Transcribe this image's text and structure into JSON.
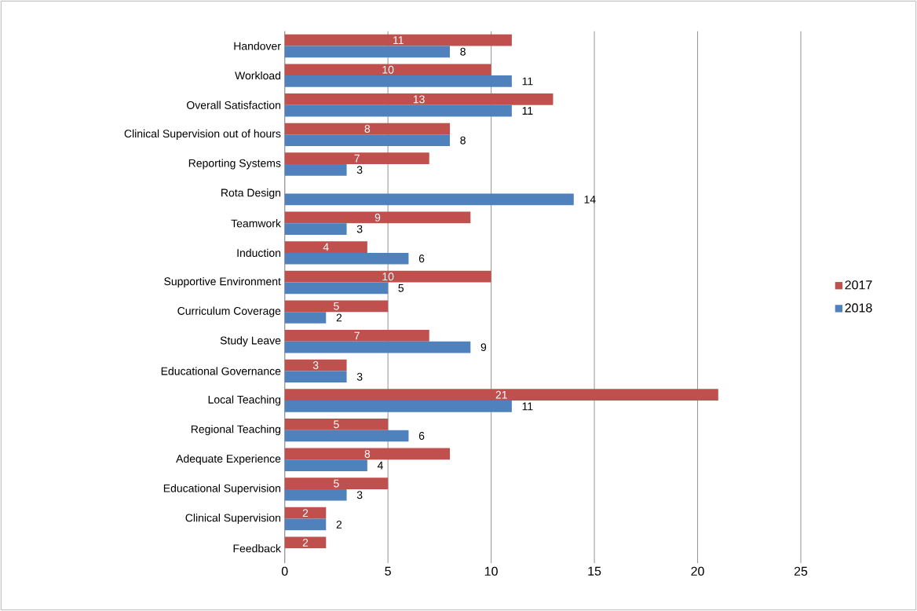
{
  "chart_data": {
    "type": "bar",
    "orientation": "horizontal",
    "categories": [
      "Handover",
      "Workload",
      "Overall Satisfaction",
      "Clinical Supervision out of hours",
      "Reporting Systems",
      "Rota Design",
      "Teamwork",
      "Induction",
      "Supportive Environment",
      "Curriculum Coverage",
      "Study Leave",
      "Educational Governance",
      "Local Teaching",
      "Regional Teaching",
      "Adequate Experience",
      "Educational Supervision",
      "Clinical Supervision",
      "Feedback"
    ],
    "series": [
      {
        "name": "2017",
        "color": "#c0504d",
        "values": [
          11,
          10,
          13,
          8,
          7,
          null,
          9,
          4,
          10,
          5,
          7,
          3,
          21,
          5,
          8,
          5,
          2,
          2
        ]
      },
      {
        "name": "2018",
        "color": "#4f81bd",
        "values": [
          8,
          11,
          11,
          8,
          3,
          14,
          3,
          6,
          5,
          2,
          9,
          3,
          11,
          6,
          4,
          3,
          2,
          null
        ]
      }
    ],
    "xlim": [
      0,
      25
    ],
    "xticks": [
      0,
      5,
      10,
      15,
      20,
      25
    ],
    "grid": "x",
    "legend": "right",
    "data_labels": true
  }
}
